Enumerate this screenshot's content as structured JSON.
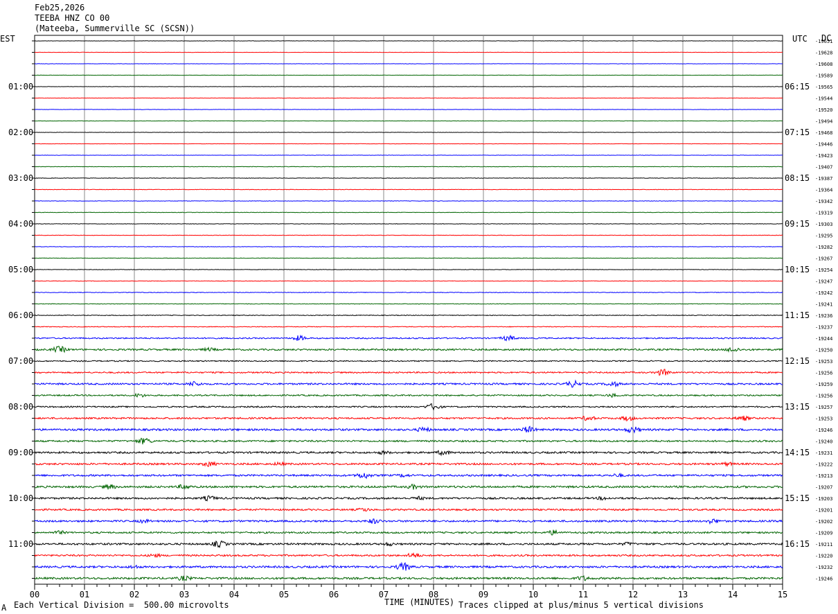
{
  "header": {
    "date": "Feb25,2026",
    "station": "TEEBA HNZ CO 00",
    "location": "(Mateeba, Summerville SC (SCSN))"
  },
  "left_zone": "EST",
  "right_zone": "UTC",
  "dc_label": "DC",
  "footer": {
    "scale_mark": "A",
    "scale": "Each Vertical Division =  500.00 microvolts",
    "xlabel": "TIME (MINUTES)",
    "clip_note": "Traces clipped at plus/minus 5 vertical divisions"
  },
  "colors": {
    "trace_cycle": [
      "#000000",
      "#ff0000",
      "#0000ff",
      "#006400"
    ],
    "grid": "#888888"
  },
  "chart_data": {
    "type": "line",
    "title": "TEEBA HNZ CO 00",
    "xlabel": "TIME (MINUTES)",
    "xlim": [
      0,
      15
    ],
    "x_ticks": [
      "00",
      "01",
      "02",
      "03",
      "04",
      "05",
      "06",
      "07",
      "08",
      "09",
      "10",
      "11",
      "12",
      "13",
      "14",
      "15"
    ],
    "rows_per_hour": 4,
    "left_hour_labels": [
      "01:00",
      "02:00",
      "03:00",
      "04:00",
      "05:00",
      "06:00",
      "07:00",
      "08:00",
      "09:00",
      "10:00",
      "11:00"
    ],
    "right_hour_labels": [
      "06:15",
      "07:15",
      "08:15",
      "09:15",
      "10:15",
      "11:15",
      "12:15",
      "13:15",
      "14:15",
      "15:15",
      "16:15"
    ],
    "dc_offsets": [
      "-19651",
      "-19628",
      "-19608",
      "-19589",
      "-19565",
      "-19544",
      "-19520",
      "-19494",
      "-19468",
      "-19446",
      "-19423",
      "-19407",
      "-19387",
      "-19364",
      "-19342",
      "-19319",
      "-19303",
      "-19295",
      "-19282",
      "-19267",
      "-19254",
      "-19247",
      "-19242",
      "-19241",
      "-19236",
      "-19237",
      "-19244",
      "-19250",
      "-19253",
      "-19256",
      "-19259",
      "-19256",
      "-19257",
      "-19253",
      "-19246",
      "-19240",
      "-19231",
      "-19222",
      "-19213",
      "-19207",
      "-19203",
      "-19201",
      "-19202",
      "-19209",
      "-19211",
      "-19220",
      "-19232",
      "-19246"
    ],
    "trace_activity": [
      0.2,
      0.2,
      0.2,
      0.2,
      0.2,
      0.2,
      0.2,
      0.2,
      0.2,
      0.2,
      0.2,
      0.3,
      0.3,
      0.3,
      0.3,
      0.3,
      0.3,
      0.3,
      0.3,
      0.3,
      0.3,
      0.3,
      0.4,
      0.4,
      0.5,
      0.5,
      0.9,
      1.2,
      0.8,
      1.0,
      1.2,
      1.0,
      1.0,
      1.2,
      1.4,
      1.2,
      1.3,
      1.3,
      1.3,
      1.4,
      1.3,
      1.2,
      1.3,
      1.2,
      1.3,
      1.2,
      1.4,
      1.4
    ],
    "trace_events": [
      {
        "row": 26,
        "minute": 5.3,
        "amp": 4
      },
      {
        "row": 26,
        "minute": 9.5,
        "amp": 4
      },
      {
        "row": 27,
        "minute": 0.5,
        "amp": 5
      },
      {
        "row": 27,
        "minute": 3.5,
        "amp": 3
      },
      {
        "row": 27,
        "minute": 14.0,
        "amp": 4
      },
      {
        "row": 29,
        "minute": 12.6,
        "amp": 5
      },
      {
        "row": 30,
        "minute": 3.2,
        "amp": 4
      },
      {
        "row": 30,
        "minute": 10.8,
        "amp": 5
      },
      {
        "row": 30,
        "minute": 11.6,
        "amp": 4
      },
      {
        "row": 31,
        "minute": 2.1,
        "amp": 3
      },
      {
        "row": 31,
        "minute": 11.6,
        "amp": 3
      },
      {
        "row": 32,
        "minute": 8.0,
        "amp": 5
      },
      {
        "row": 33,
        "minute": 11.1,
        "amp": 4
      },
      {
        "row": 33,
        "minute": 11.9,
        "amp": 4
      },
      {
        "row": 33,
        "minute": 14.2,
        "amp": 4
      },
      {
        "row": 34,
        "minute": 7.8,
        "amp": 4
      },
      {
        "row": 34,
        "minute": 9.9,
        "amp": 5
      },
      {
        "row": 34,
        "minute": 12.0,
        "amp": 5
      },
      {
        "row": 35,
        "minute": 2.2,
        "amp": 5
      },
      {
        "row": 36,
        "minute": 7.0,
        "amp": 3
      },
      {
        "row": 36,
        "minute": 8.2,
        "amp": 4
      },
      {
        "row": 37,
        "minute": 3.5,
        "amp": 4
      },
      {
        "row": 37,
        "minute": 4.9,
        "amp": 3
      },
      {
        "row": 37,
        "minute": 13.9,
        "amp": 3
      },
      {
        "row": 38,
        "minute": 6.6,
        "amp": 5
      },
      {
        "row": 38,
        "minute": 7.4,
        "amp": 3
      },
      {
        "row": 38,
        "minute": 11.7,
        "amp": 3
      },
      {
        "row": 39,
        "minute": 1.5,
        "amp": 4
      },
      {
        "row": 39,
        "minute": 3.0,
        "amp": 4
      },
      {
        "row": 39,
        "minute": 7.6,
        "amp": 4
      },
      {
        "row": 40,
        "minute": 3.5,
        "amp": 4
      },
      {
        "row": 40,
        "minute": 7.7,
        "amp": 3
      },
      {
        "row": 40,
        "minute": 11.4,
        "amp": 3
      },
      {
        "row": 41,
        "minute": 6.6,
        "amp": 3
      },
      {
        "row": 42,
        "minute": 2.2,
        "amp": 3
      },
      {
        "row": 42,
        "minute": 6.8,
        "amp": 4
      },
      {
        "row": 42,
        "minute": 13.6,
        "amp": 4
      },
      {
        "row": 43,
        "minute": 0.5,
        "amp": 3
      },
      {
        "row": 43,
        "minute": 10.4,
        "amp": 4
      },
      {
        "row": 44,
        "minute": 3.7,
        "amp": 5
      },
      {
        "row": 44,
        "minute": 7.1,
        "amp": 3
      },
      {
        "row": 44,
        "minute": 11.9,
        "amp": 3
      },
      {
        "row": 45,
        "minute": 2.4,
        "amp": 3
      },
      {
        "row": 45,
        "minute": 7.6,
        "amp": 4
      },
      {
        "row": 46,
        "minute": 7.4,
        "amp": 6
      },
      {
        "row": 46,
        "minute": 2.0,
        "amp": 3
      },
      {
        "row": 47,
        "minute": 3.0,
        "amp": 4
      },
      {
        "row": 47,
        "minute": 11.0,
        "amp": 4
      }
    ]
  }
}
